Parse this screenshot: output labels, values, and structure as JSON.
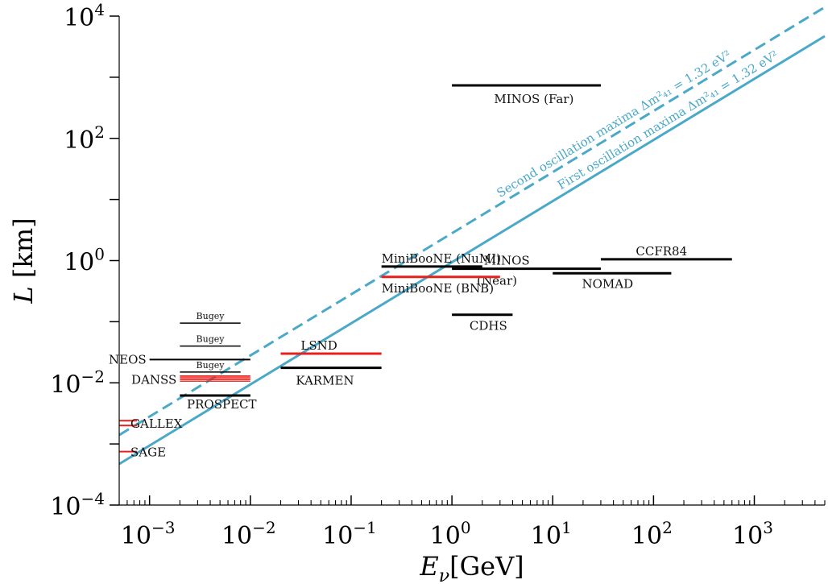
{
  "chart_data": {
    "type": "line",
    "xlabel": "E_ν[GeV]",
    "ylabel": "L [km]",
    "xscale": "log",
    "yscale": "log",
    "xlim": [
      0.0005,
      5000
    ],
    "ylim": [
      0.0001,
      10000
    ],
    "x_tick_labels": [
      {
        "base": "10",
        "exp": "−3",
        "value": 0.001
      },
      {
        "base": "10",
        "exp": "−2",
        "value": 0.01
      },
      {
        "base": "10",
        "exp": "−1",
        "value": 0.1
      },
      {
        "base": "10",
        "exp": "0",
        "value": 1
      },
      {
        "base": "10",
        "exp": "1",
        "value": 10
      },
      {
        "base": "10",
        "exp": "2",
        "value": 100
      },
      {
        "base": "10",
        "exp": "3",
        "value": 1000
      }
    ],
    "y_tick_labels": [
      {
        "base": "10",
        "exp": "−4",
        "value": 0.0001
      },
      {
        "base": "10",
        "exp": "−2",
        "value": 0.01
      },
      {
        "base": "10",
        "exp": "0",
        "value": 1
      },
      {
        "base": "10",
        "exp": "2",
        "value": 100
      },
      {
        "base": "10",
        "exp": "4",
        "value": 10000
      }
    ],
    "oscillation_lines": [
      {
        "name": "First oscillation maxima Δm²₄₁ = 1.32 eV²",
        "style": "solid",
        "color": "#4aa8c8",
        "x": [
          0.0005,
          5000
        ],
        "y": [
          0.00047,
          4700
        ]
      },
      {
        "name": "Second oscillation maxima Δm²₄₁ = 1.32 eV²",
        "style": "dashed",
        "color": "#4aa8c8",
        "x": [
          0.0005,
          5000
        ],
        "y": [
          0.0014,
          14000
        ]
      }
    ],
    "experiments": [
      {
        "label": "MINOS (Far)",
        "e": [
          1.0,
          30.0
        ],
        "L": 735,
        "color": "#000000",
        "label_pos": "below",
        "lw": 3
      },
      {
        "label": "CCFR84",
        "e": [
          30.0,
          600.0
        ],
        "L": 1.05,
        "color": "#000000",
        "label_pos": "above",
        "lw": 3
      },
      {
        "label": "NOMAD",
        "e": [
          10.0,
          150.0
        ],
        "L": 0.62,
        "color": "#000000",
        "label_pos": "below",
        "lw": 3
      },
      {
        "label": "MINOS",
        "e": [
          1.0,
          30.0
        ],
        "L": 0.735,
        "color": "#000000",
        "label_pos": "above",
        "lw": 3
      },
      {
        "label": "(Near)",
        "e": [
          1.0,
          30.0
        ],
        "L": 0.735,
        "color": "#000000",
        "label_pos": "below",
        "lw": 0
      },
      {
        "label": "MiniBooNE (NuMI)",
        "e": [
          0.2,
          2.0
        ],
        "L": 0.8,
        "color": "#000000",
        "label_pos": "above",
        "lw": 3
      },
      {
        "label": "MiniBooNE (BNB)",
        "e": [
          0.2,
          3.0
        ],
        "L": 0.54,
        "color": "#e8201c",
        "label_pos": "below",
        "lw": 3
      },
      {
        "label": "CDHS",
        "e": [
          1.0,
          4.0
        ],
        "L": 0.13,
        "color": "#000000",
        "label_pos": "below",
        "lw": 3
      },
      {
        "label": "LSND",
        "e": [
          0.02,
          0.2
        ],
        "L": 0.03,
        "color": "#e8201c",
        "label_pos": "above",
        "lw": 3
      },
      {
        "label": "KARMEN",
        "e": [
          0.02,
          0.2
        ],
        "L": 0.0176,
        "color": "#000000",
        "label_pos": "below",
        "lw": 3
      },
      {
        "label": "Bugey",
        "e": [
          0.002,
          0.008
        ],
        "L": 0.095,
        "color": "#000000",
        "label_pos": "above",
        "lw": 1.5
      },
      {
        "label": "Bugey",
        "e": [
          0.002,
          0.008
        ],
        "L": 0.04,
        "color": "#000000",
        "label_pos": "above",
        "lw": 1.5
      },
      {
        "label": "Bugey",
        "e": [
          0.002,
          0.008
        ],
        "L": 0.015,
        "color": "#000000",
        "label_pos": "above",
        "lw": 1.5
      },
      {
        "label": "NEOS",
        "e": [
          0.001,
          0.01
        ],
        "L": 0.024,
        "color": "#000000",
        "label_pos": "left",
        "lw": 2
      },
      {
        "label": "DANSS",
        "e": [
          0.002,
          0.01
        ],
        "L": 0.0112,
        "color": "#e8201c",
        "label_pos": "left",
        "lw": 1.2,
        "stack": [
          0.0106,
          0.0112,
          0.0118,
          0.0124,
          0.013
        ]
      },
      {
        "label": "PROSPECT",
        "e": [
          0.002,
          0.01
        ],
        "L": 0.0062,
        "color": "#000000",
        "label_pos": "below",
        "lw": 3
      },
      {
        "label": "GALLEX",
        "e": [
          0.0005,
          0.00075
        ],
        "L": 0.0022,
        "color": "#e8201c",
        "label_pos": "right",
        "lw": 2,
        "stack": [
          0.002,
          0.0024
        ]
      },
      {
        "label": "SAGE",
        "e": [
          0.0005,
          0.00075
        ],
        "L": 0.00075,
        "color": "#e8201c",
        "label_pos": "right",
        "lw": 2
      }
    ]
  }
}
